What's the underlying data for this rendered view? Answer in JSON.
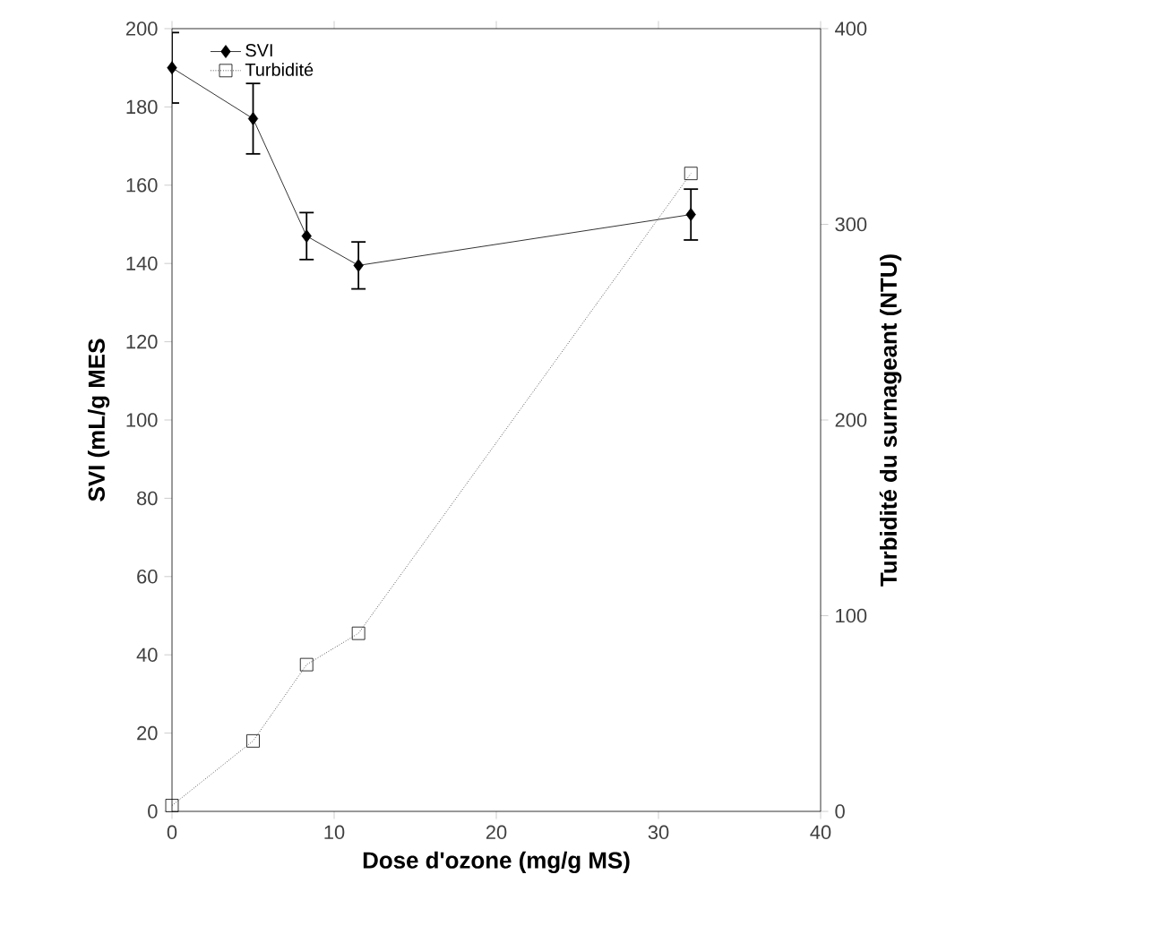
{
  "chart_data": {
    "type": "line",
    "xlabel": "Dose d'ozone (mg/g MS)",
    "ylabel": "SVI (mL/g MES",
    "y2label": "Turbidité du surnageant (NTU)",
    "xlim": [
      0,
      40
    ],
    "xticks": [
      0,
      10,
      20,
      30,
      40
    ],
    "ylim": [
      0,
      200
    ],
    "yticks": [
      0,
      20,
      40,
      60,
      80,
      100,
      120,
      140,
      160,
      180,
      200
    ],
    "y2lim": [
      0,
      400
    ],
    "y2ticks": [
      0,
      100,
      200,
      300,
      400
    ],
    "legend": "top left",
    "grid": false,
    "series": [
      {
        "name": "SVI",
        "color": "#000000",
        "x": [
          0,
          5,
          8.3,
          11.5,
          32
        ],
        "values": [
          190,
          177,
          147,
          139.5,
          152.5
        ],
        "errors": [
          9,
          9,
          6,
          6,
          6.5
        ],
        "marker": "diamond",
        "line_style": "solid"
      },
      {
        "name": "Turbidité",
        "color": "#000000",
        "x": [
          0,
          5,
          8.3,
          11.5,
          32
        ],
        "values": [
          3,
          36,
          75,
          91,
          326
        ],
        "marker": "square",
        "line_style": "dotted",
        "axis": "y2"
      }
    ]
  }
}
